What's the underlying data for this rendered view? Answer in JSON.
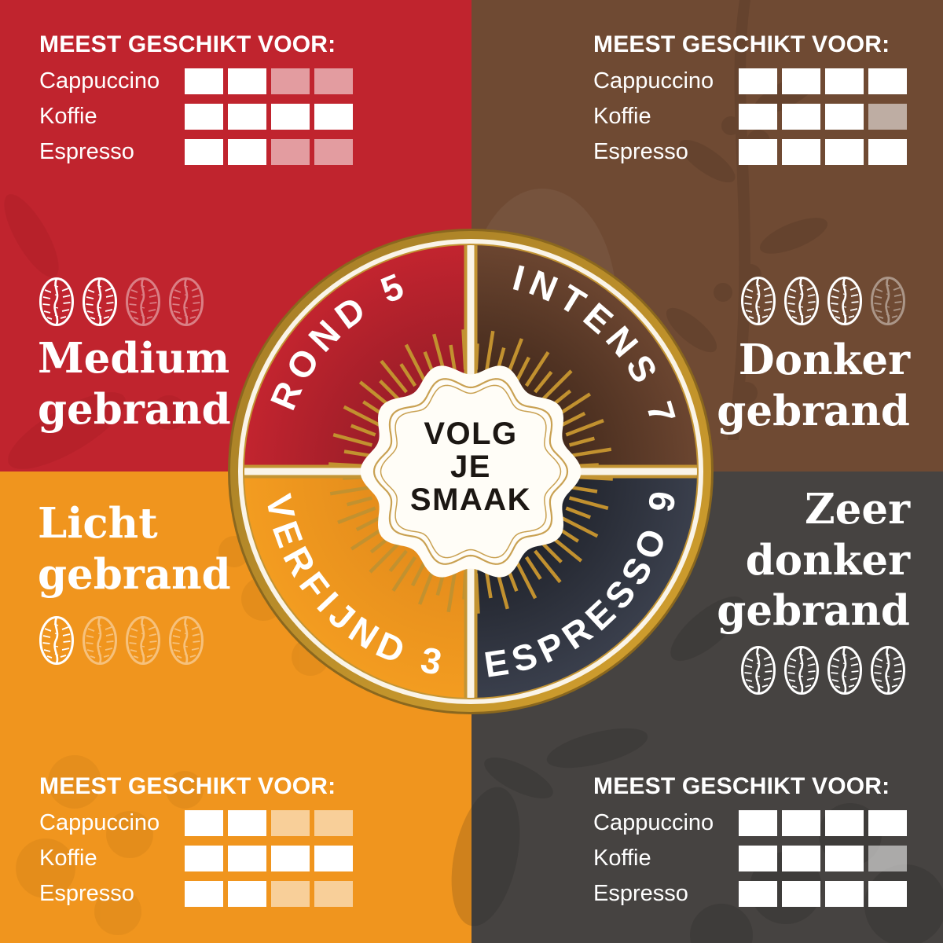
{
  "quadrants": {
    "top_left": {
      "roast": "medium",
      "bg_color": "#C0242E",
      "roast_lines": [
        "Medium",
        "gebrand"
      ],
      "beans_filled": 2,
      "beans_total": 4,
      "suitability": {
        "header": "MEEST GESCHIKT VOOR:",
        "rows": [
          {
            "label": "Cappuccino",
            "filled": 2,
            "total": 4
          },
          {
            "label": "Koffie",
            "filled": 4,
            "total": 4
          },
          {
            "label": "Espresso",
            "filled": 2,
            "total": 4
          }
        ]
      }
    },
    "top_right": {
      "roast": "donker",
      "bg_color": "#6F4A33",
      "roast_lines": [
        "Donker",
        "gebrand"
      ],
      "beans_filled": 3,
      "beans_total": 4,
      "suitability": {
        "header": "MEEST GESCHIKT VOOR:",
        "rows": [
          {
            "label": "Cappuccino",
            "filled": 4,
            "total": 4
          },
          {
            "label": "Koffie",
            "filled": 3,
            "total": 4
          },
          {
            "label": "Espresso",
            "filled": 4,
            "total": 4
          }
        ]
      }
    },
    "bottom_left": {
      "roast": "licht",
      "bg_color": "#F0951E",
      "roast_lines": [
        "Licht",
        "gebrand"
      ],
      "beans_filled": 1,
      "beans_total": 4,
      "suitability": {
        "header": "MEEST GESCHIKT VOOR:",
        "rows": [
          {
            "label": "Cappuccino",
            "filled": 2,
            "total": 4
          },
          {
            "label": "Koffie",
            "filled": 4,
            "total": 4
          },
          {
            "label": "Espresso",
            "filled": 2,
            "total": 4
          }
        ]
      }
    },
    "bottom_right": {
      "roast": "zeer-donker",
      "bg_color": "#464341",
      "roast_lines": [
        "Zeer",
        "donker",
        "gebrand"
      ],
      "beans_filled": 4,
      "beans_total": 4,
      "suitability": {
        "header": "MEEST GESCHIKT VOOR:",
        "rows": [
          {
            "label": "Cappuccino",
            "filled": 4,
            "total": 4
          },
          {
            "label": "Koffie",
            "filled": 3,
            "total": 4
          },
          {
            "label": "Espresso",
            "filled": 4,
            "total": 4
          }
        ]
      }
    }
  },
  "wheel": {
    "ring_color": "#BF922D",
    "ray_color": "#C2912F",
    "divider_color": "#FAF4E8",
    "segments": [
      {
        "label": "ROND 5",
        "intensity": 5,
        "position": "top-left",
        "color_inner": "#851A24",
        "color_outer": "#C2242F"
      },
      {
        "label": "INTENS 7",
        "intensity": 7,
        "position": "top-right",
        "color_inner": "#2E1B11",
        "color_outer": "#6B4530"
      },
      {
        "label": "VERFIJND 3",
        "intensity": 3,
        "position": "bottom-left",
        "color_inner": "#DE861A",
        "color_outer": "#F39C20"
      },
      {
        "label": "ESPRESSO 9",
        "intensity": 9,
        "position": "bottom-right",
        "color_inner": "#13151B",
        "color_outer": "#3A3F4C"
      }
    ],
    "center_badge": {
      "lines": [
        "VOLG",
        "JE",
        "SMAAK"
      ],
      "text_color": "#1C1713",
      "badge_color": "#FFFDF7"
    }
  }
}
